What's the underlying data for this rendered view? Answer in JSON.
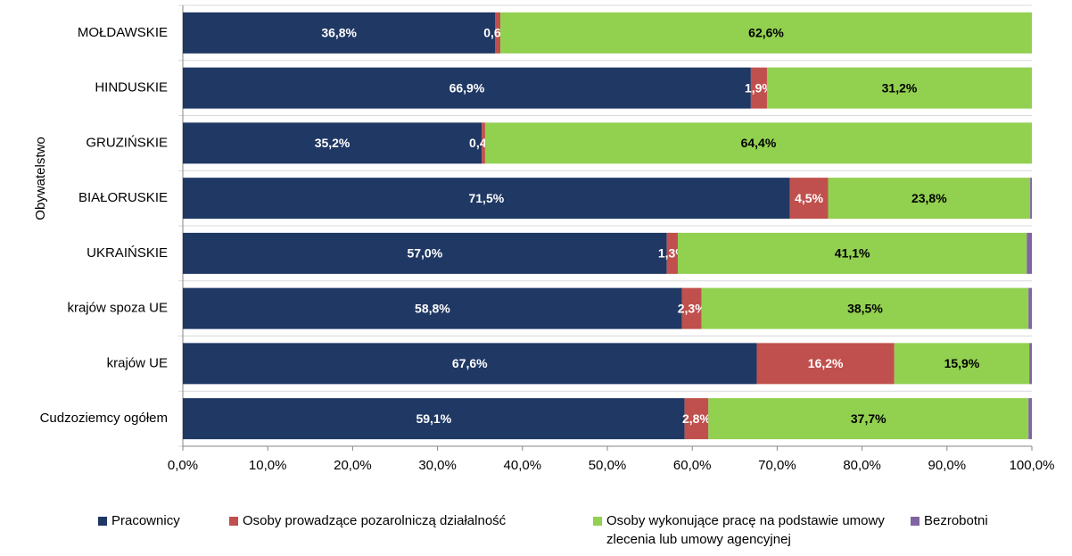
{
  "chart_data": {
    "type": "stacked-bar-horizontal",
    "y_axis_label": "Obywatelstwo",
    "categories": [
      "MOŁDAWSKIE",
      "HINDUSKIE",
      "GRUZIŃSKIE",
      "BIAŁORUSKIE",
      "UKRAIŃSKIE",
      "krajów spoza UE",
      "krajów UE",
      "Cudzoziemcy ogółem"
    ],
    "series": [
      {
        "name": "Pracownicy",
        "color": "#1f3864",
        "values": [
          36.8,
          66.9,
          35.2,
          71.5,
          57.0,
          58.8,
          67.6,
          59.1
        ],
        "value_labels": [
          "36,8%",
          "66,9%",
          "35,2%",
          "71,5%",
          "57,0%",
          "58,8%",
          "67,6%",
          "59,1%"
        ]
      },
      {
        "name": "Osoby prowadzące pozarolniczą działalność",
        "color": "#c0504d",
        "values": [
          0.6,
          1.9,
          0.4,
          4.5,
          1.3,
          2.3,
          16.2,
          2.8
        ],
        "value_labels": [
          "0,6%",
          "1,9%",
          "0,4%",
          "4,5%",
          "1,3%",
          "2,3%",
          "16,2%",
          "2,8%"
        ]
      },
      {
        "name": "Osoby wykonujące pracę na podstawie umowy zlecenia lub umowy agencyjnej",
        "color": "#92d050",
        "values": [
          62.6,
          31.2,
          64.4,
          23.8,
          41.1,
          38.5,
          15.9,
          37.7
        ],
        "value_labels": [
          "62,6%",
          "31,2%",
          "64,4%",
          "23,8%",
          "41,1%",
          "38,5%",
          "15,9%",
          "37,7%"
        ]
      },
      {
        "name": "Bezrobotni",
        "color": "#8064a2",
        "values": [
          0,
          0,
          0,
          0.2,
          0.6,
          0.4,
          0.3,
          0.4
        ]
      }
    ],
    "xlim": [
      0,
      100
    ],
    "xticks": [
      {
        "value": 0,
        "label": "0,0%"
      },
      {
        "value": 10,
        "label": "10,0%"
      },
      {
        "value": 20,
        "label": "20,0%"
      },
      {
        "value": 30,
        "label": "30,0%"
      },
      {
        "value": 40,
        "label": "40,0%"
      },
      {
        "value": 50,
        "label": "50,0%"
      },
      {
        "value": 60,
        "label": "60,0%"
      },
      {
        "value": 70,
        "label": "70,0%"
      },
      {
        "value": 80,
        "label": "80,0%"
      },
      {
        "value": 90,
        "label": "90,0%"
      },
      {
        "value": 100,
        "label": "100,0%"
      }
    ]
  }
}
